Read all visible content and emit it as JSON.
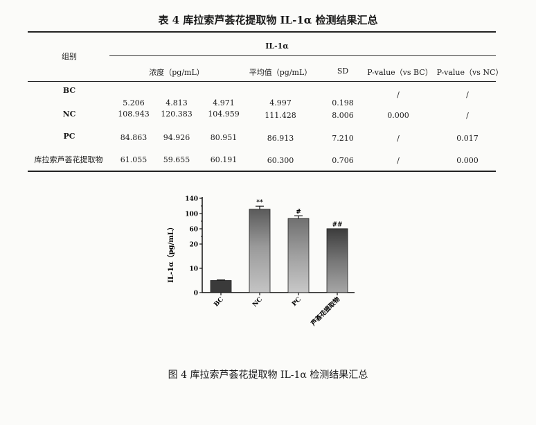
{
  "table": {
    "caption": "表 4   库拉索芦荟花提取物 IL-1α 检测结果汇总",
    "header": {
      "group": "组别",
      "il1a": "IL-1α",
      "conc": "浓度（pg/mL）",
      "mean": "平均值（pg/mL）",
      "sd": "SD",
      "p_bc": "P-value（vs BC）",
      "p_nc": "P-value（vs NC）"
    },
    "rows": [
      {
        "group": "BC",
        "v1": "5.206",
        "v2": "4.813",
        "v3": "4.971",
        "mean": "4.997",
        "sd": "0.198",
        "p_bc": "/",
        "p_nc": "/"
      },
      {
        "group": "NC",
        "v1": "108.943",
        "v2": "120.383",
        "v3": "104.959",
        "mean": "111.428",
        "sd": "8.006",
        "p_bc": "0.000",
        "p_nc": "/"
      },
      {
        "group": "PC",
        "v1": "84.863",
        "v2": "94.926",
        "v3": "80.951",
        "mean": "86.913",
        "sd": "7.210",
        "p_bc": "/",
        "p_nc": "0.017"
      },
      {
        "group": "库拉索芦荟花提取物",
        "v1": "61.055",
        "v2": "59.655",
        "v3": "60.191",
        "mean": "60.300",
        "sd": "0.706",
        "p_bc": "/",
        "p_nc": "0.000"
      }
    ]
  },
  "chart_data": {
    "type": "bar",
    "categories": [
      "BC",
      "NC",
      "PC",
      "芦荟花提取物"
    ],
    "values": [
      4.997,
      111.428,
      86.913,
      60.3
    ],
    "errors": [
      0.198,
      8.006,
      7.21,
      0.706
    ],
    "annotations": [
      "",
      "**",
      "#",
      "##"
    ],
    "ylabel": "IL-1α（pg/mL）",
    "y_ticks": [
      0,
      10,
      20,
      60,
      100,
      140
    ],
    "axis_break": "segmented y-axis: 0–20 linear, 20–140 compressed",
    "colors": {
      "BC": "#3a3a3a",
      "NC": "#8a8a8a",
      "PC": "#8f8f8f",
      "extract": "#6e6e6e"
    }
  },
  "figure": {
    "caption": "图 4   库拉索芦荟花提取物 IL-1α 检测结果汇总"
  }
}
